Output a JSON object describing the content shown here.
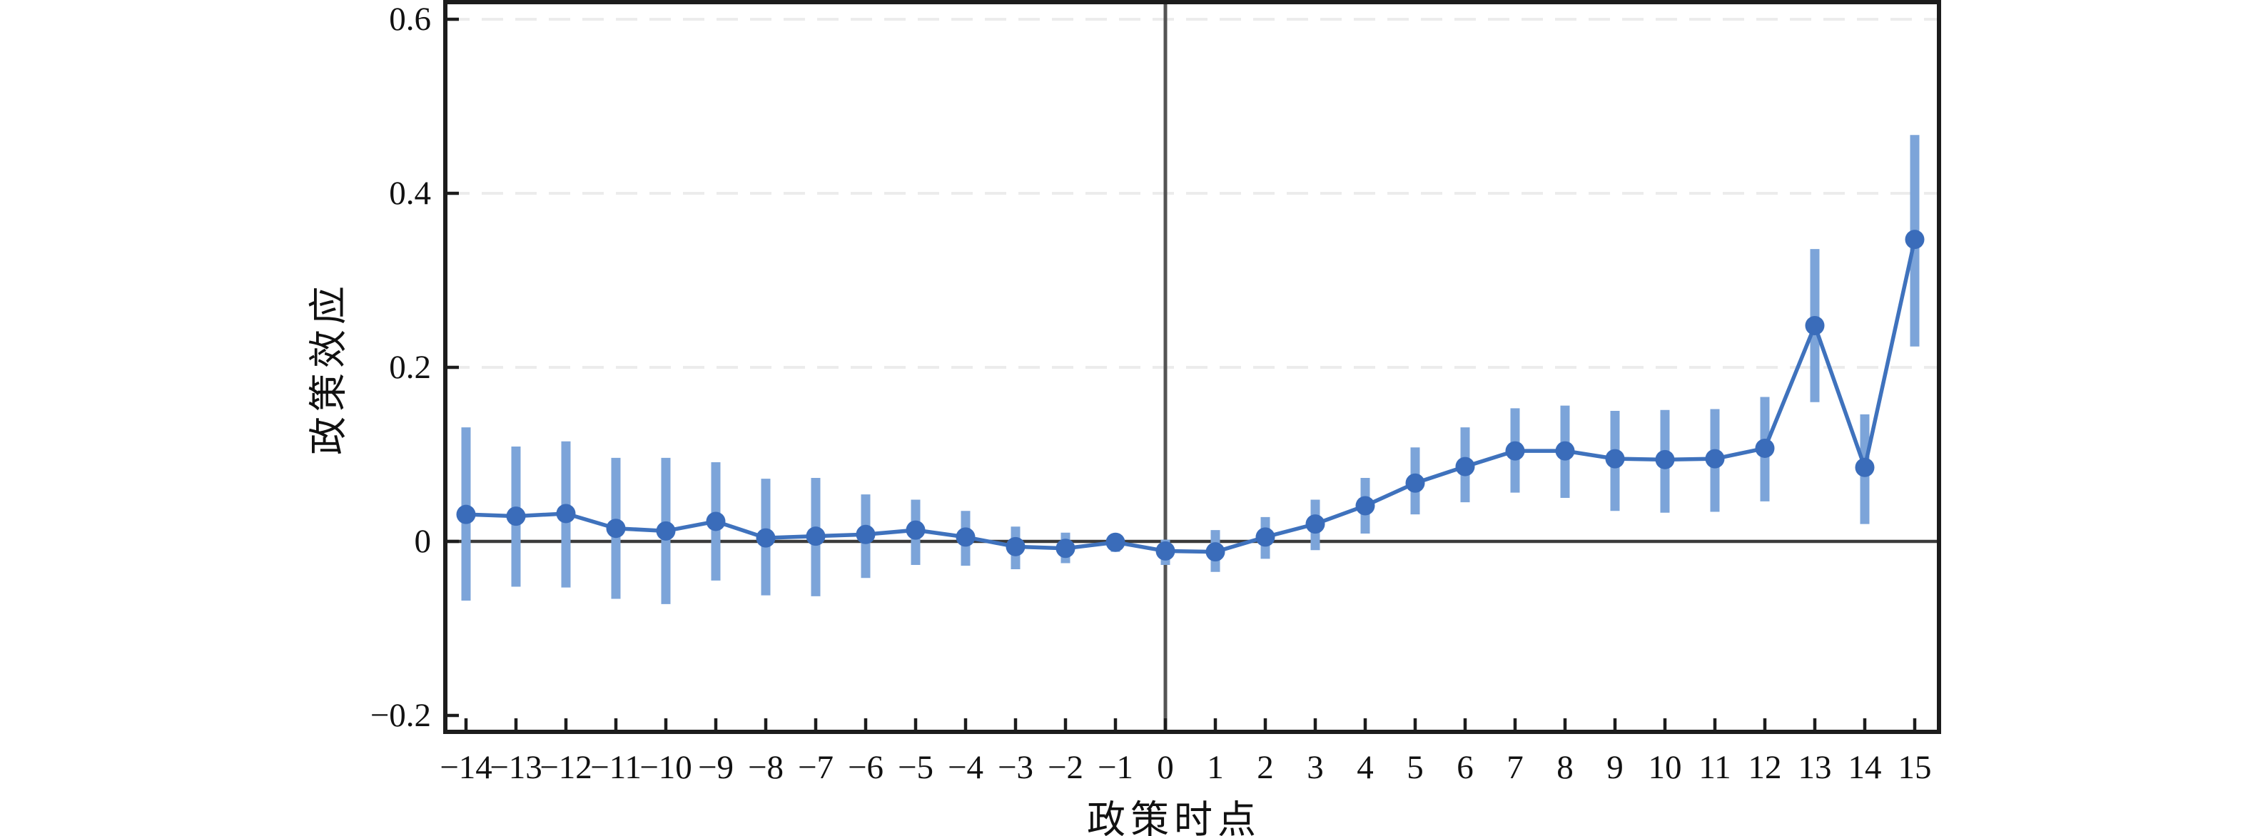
{
  "chart_data": {
    "type": "line",
    "subtype": "errorbar-event-study",
    "title": "",
    "xlabel": "政策时点",
    "ylabel": "政策效应",
    "legend": "none",
    "grid": {
      "shown": true,
      "style": "dashed",
      "at_values": [
        0.2,
        0.4,
        0.6
      ]
    },
    "reference_lines": {
      "horizontal_y": 0,
      "vertical_x": 0
    },
    "xlim": [
      -14.45,
      15.5
    ],
    "ylim": [
      -0.22,
      0.62
    ],
    "x_ticks": [
      {
        "x": -14,
        "label": "−14"
      },
      {
        "x": -13,
        "label": "−13"
      },
      {
        "x": -12,
        "label": "−12"
      },
      {
        "x": -11,
        "label": "−11"
      },
      {
        "x": -10,
        "label": "−10"
      },
      {
        "x": -9,
        "label": "−9"
      },
      {
        "x": -8,
        "label": "−8"
      },
      {
        "x": -7,
        "label": "−7"
      },
      {
        "x": -6,
        "label": "−6"
      },
      {
        "x": -5,
        "label": "−5"
      },
      {
        "x": -4,
        "label": "−4"
      },
      {
        "x": -3,
        "label": "−3"
      },
      {
        "x": -2,
        "label": "−2"
      },
      {
        "x": -1,
        "label": "−1"
      },
      {
        "x": 0,
        "label": "0"
      },
      {
        "x": 1,
        "label": "1"
      },
      {
        "x": 2,
        "label": "2"
      },
      {
        "x": 3,
        "label": "3"
      },
      {
        "x": 4,
        "label": "4"
      },
      {
        "x": 5,
        "label": "5"
      },
      {
        "x": 6,
        "label": "6"
      },
      {
        "x": 7,
        "label": "7"
      },
      {
        "x": 8,
        "label": "8"
      },
      {
        "x": 9,
        "label": "9"
      },
      {
        "x": 10,
        "label": "10"
      },
      {
        "x": 11,
        "label": "11"
      },
      {
        "x": 12,
        "label": "12"
      },
      {
        "x": 13,
        "label": "13"
      },
      {
        "x": 14,
        "label": "14"
      },
      {
        "x": 15,
        "label": "15"
      }
    ],
    "y_ticks": [
      {
        "value": 0.6,
        "label": "0.6"
      },
      {
        "value": 0.4,
        "label": "0.4"
      },
      {
        "value": 0.2,
        "label": "0.2"
      },
      {
        "value": 0,
        "label": "0"
      },
      {
        "value": -0.2,
        "label": "−0.2"
      }
    ],
    "points": [
      {
        "x": -14,
        "y": 0.031,
        "lo": -0.068,
        "hi": 0.131
      },
      {
        "x": -13,
        "y": 0.029,
        "lo": -0.052,
        "hi": 0.109
      },
      {
        "x": -12,
        "y": 0.032,
        "lo": -0.053,
        "hi": 0.115
      },
      {
        "x": -11,
        "y": 0.015,
        "lo": -0.066,
        "hi": 0.096
      },
      {
        "x": -10,
        "y": 0.012,
        "lo": -0.072,
        "hi": 0.096
      },
      {
        "x": -9,
        "y": 0.023,
        "lo": -0.045,
        "hi": 0.091
      },
      {
        "x": -8,
        "y": 0.004,
        "lo": -0.062,
        "hi": 0.072
      },
      {
        "x": -7,
        "y": 0.006,
        "lo": -0.063,
        "hi": 0.073
      },
      {
        "x": -6,
        "y": 0.008,
        "lo": -0.042,
        "hi": 0.054
      },
      {
        "x": -5,
        "y": 0.013,
        "lo": -0.027,
        "hi": 0.048
      },
      {
        "x": -4,
        "y": 0.005,
        "lo": -0.028,
        "hi": 0.035
      },
      {
        "x": -3,
        "y": -0.006,
        "lo": -0.032,
        "hi": 0.017
      },
      {
        "x": -2,
        "y": -0.008,
        "lo": -0.025,
        "hi": 0.01
      },
      {
        "x": -1,
        "y": -0.001,
        "lo": -0.012,
        "hi": 0.009
      },
      {
        "x": 0,
        "y": -0.011,
        "lo": -0.027,
        "hi": 0.002
      },
      {
        "x": 1,
        "y": -0.012,
        "lo": -0.035,
        "hi": 0.013
      },
      {
        "x": 2,
        "y": 0.005,
        "lo": -0.02,
        "hi": 0.028
      },
      {
        "x": 3,
        "y": 0.02,
        "lo": -0.01,
        "hi": 0.048
      },
      {
        "x": 4,
        "y": 0.041,
        "lo": 0.009,
        "hi": 0.073
      },
      {
        "x": 5,
        "y": 0.067,
        "lo": 0.031,
        "hi": 0.108
      },
      {
        "x": 6,
        "y": 0.086,
        "lo": 0.045,
        "hi": 0.131
      },
      {
        "x": 7,
        "y": 0.104,
        "lo": 0.056,
        "hi": 0.153
      },
      {
        "x": 8,
        "y": 0.104,
        "lo": 0.05,
        "hi": 0.156
      },
      {
        "x": 9,
        "y": 0.095,
        "lo": 0.035,
        "hi": 0.15
      },
      {
        "x": 10,
        "y": 0.094,
        "lo": 0.033,
        "hi": 0.151
      },
      {
        "x": 11,
        "y": 0.095,
        "lo": 0.034,
        "hi": 0.152
      },
      {
        "x": 12,
        "y": 0.107,
        "lo": 0.046,
        "hi": 0.166
      },
      {
        "x": 13,
        "y": 0.248,
        "lo": 0.16,
        "hi": 0.336
      },
      {
        "x": 14,
        "y": 0.085,
        "lo": 0.02,
        "hi": 0.146
      },
      {
        "x": 15,
        "y": 0.347,
        "lo": 0.224,
        "hi": 0.467
      }
    ],
    "colors": {
      "marker": "#3a6cba",
      "line": "#3f72bd",
      "error_bar": "#7ca4d9",
      "grid": "#ececec",
      "zero_line": "#3b3b3b",
      "event_line": "#545454",
      "spine": "#1c1c1c",
      "text": "#111111",
      "background": "#ffffff"
    }
  }
}
